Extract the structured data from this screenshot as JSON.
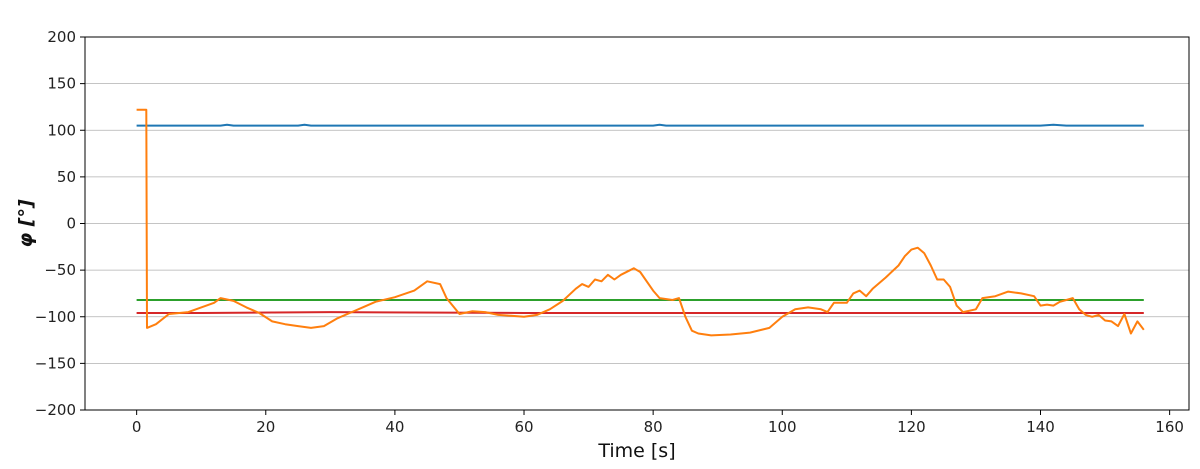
{
  "chart_data": {
    "type": "line",
    "title": "",
    "xlabel": "Time [s]",
    "ylabel": "φ [°]",
    "xlim": [
      -8,
      163
    ],
    "ylim": [
      -200,
      200
    ],
    "xticks": [
      0,
      20,
      40,
      60,
      80,
      100,
      120,
      140,
      160
    ],
    "yticks": [
      -200,
      -150,
      -100,
      -50,
      0,
      50,
      100,
      150,
      200
    ],
    "xtick_labels": [
      "0",
      "20",
      "40",
      "60",
      "80",
      "100",
      "120",
      "140",
      "160"
    ],
    "ytick_labels": [
      "−200",
      "−150",
      "−100",
      "−50",
      "0",
      "50",
      "100",
      "150",
      "200"
    ],
    "grid": "horizontal",
    "series": [
      {
        "name": "blue",
        "color": "#1f77b4",
        "x": [
          0,
          13,
          14,
          15,
          25,
          26,
          27,
          80,
          81,
          82,
          140,
          142,
          144,
          156
        ],
        "y": [
          105,
          105,
          106,
          105,
          105,
          106,
          105,
          105,
          106,
          105,
          105,
          106,
          105,
          105
        ]
      },
      {
        "name": "green",
        "color": "#2ca02c",
        "x": [
          0,
          156
        ],
        "y": [
          -82,
          -82
        ]
      },
      {
        "name": "red",
        "color": "#d62728",
        "x": [
          0,
          10,
          30,
          60,
          90,
          120,
          150,
          156
        ],
        "y": [
          -96,
          -96,
          -95,
          -96,
          -96,
          -96,
          -96,
          -96
        ]
      },
      {
        "name": "orange",
        "color": "#ff7f0e",
        "x": [
          0,
          1.5,
          1.6,
          3,
          5,
          8,
          10,
          12,
          13,
          15,
          17,
          19,
          21,
          23,
          25,
          27,
          29,
          31,
          33,
          35,
          37,
          40,
          43,
          45,
          47,
          48,
          50,
          52,
          54,
          56,
          58,
          60,
          62,
          64,
          66,
          68,
          69,
          70,
          71,
          72,
          73,
          74,
          75,
          77,
          78,
          80,
          81,
          83,
          84,
          85,
          86,
          87,
          89,
          92,
          95,
          98,
          100,
          102,
          104,
          106,
          107,
          108,
          110,
          111,
          112,
          113,
          114,
          116,
          118,
          119,
          120,
          121,
          122,
          123,
          124,
          125,
          126,
          127,
          128,
          130,
          131,
          133,
          135,
          137,
          139,
          140,
          141,
          142,
          143,
          144,
          145,
          146,
          147,
          148,
          149,
          150,
          151,
          152,
          153,
          154,
          155,
          156
        ],
        "y": [
          122,
          122,
          -112,
          -108,
          -97,
          -95,
          -90,
          -85,
          -80,
          -83,
          -90,
          -96,
          -105,
          -108,
          -110,
          -112,
          -110,
          -102,
          -96,
          -90,
          -84,
          -79,
          -72,
          -62,
          -65,
          -80,
          -97,
          -94,
          -95,
          -98,
          -99,
          -100,
          -98,
          -92,
          -83,
          -70,
          -65,
          -68,
          -60,
          -62,
          -55,
          -60,
          -55,
          -48,
          -52,
          -72,
          -80,
          -82,
          -80,
          -100,
          -115,
          -118,
          -120,
          -119,
          -117,
          -112,
          -100,
          -92,
          -90,
          -92,
          -95,
          -85,
          -85,
          -75,
          -72,
          -78,
          -70,
          -58,
          -45,
          -35,
          -28,
          -26,
          -32,
          -45,
          -60,
          -60,
          -68,
          -88,
          -95,
          -92,
          -80,
          -78,
          -73,
          -75,
          -78,
          -88,
          -87,
          -88,
          -84,
          -82,
          -80,
          -92,
          -98,
          -100,
          -98,
          -104,
          -105,
          -110,
          -97,
          -118,
          -105,
          -114
        ]
      }
    ]
  }
}
